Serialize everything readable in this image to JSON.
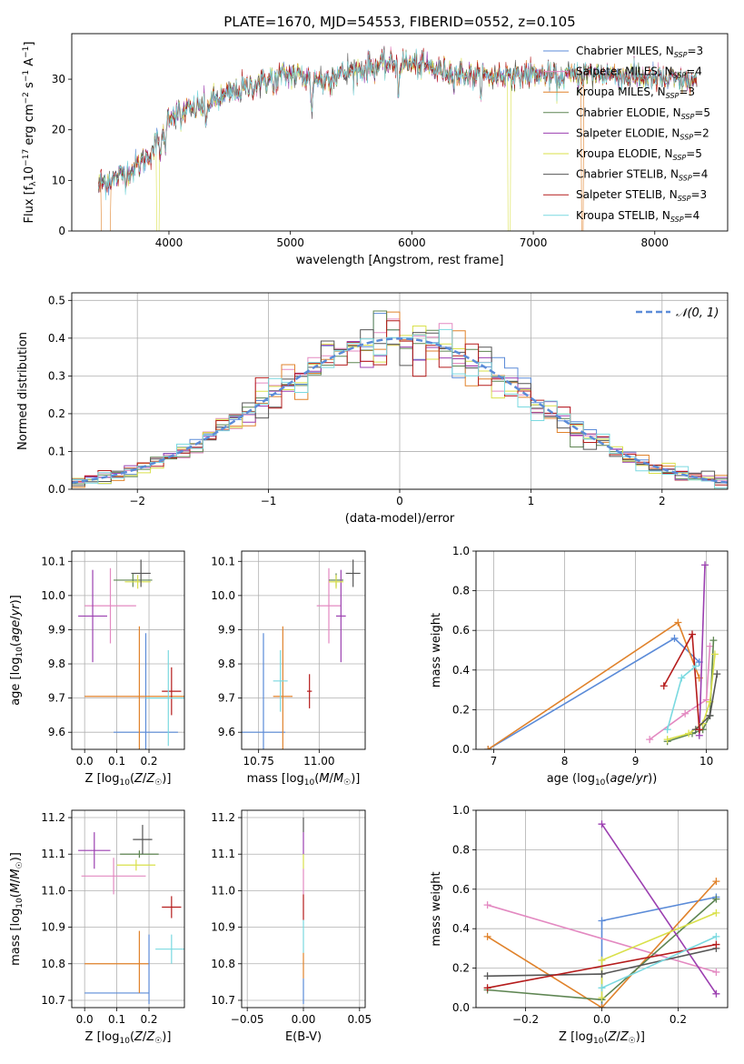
{
  "figure_title": "PLATE=1670, MJD=54553, FIBERID=0552, z=0.105",
  "colors": {
    "Chabrier MILES": "#5b8bd8",
    "Salpeter MILES": "#e389c1",
    "Kroupa MILES": "#e0822b",
    "Chabrier ELODIE": "#5e8552",
    "Salpeter ELODIE": "#9b3fb0",
    "Kroupa ELODIE": "#d9e04a",
    "Chabrier STELIB": "#555555",
    "Salpeter STELIB": "#b51c1c",
    "Kroupa STELIB": "#7ad9e0"
  },
  "chart_data": [
    {
      "id": "spectrum",
      "type": "line",
      "xlabel": "wavelength [Angstrom, rest frame]",
      "ylabel": "Flux [f_λ10^-17 erg cm^-2 s^-1 A^-1]",
      "xlim": [
        3200,
        8600
      ],
      "ylim": [
        0,
        39
      ],
      "xticks": [
        4000,
        5000,
        6000,
        7000,
        8000
      ],
      "yticks": [
        0,
        10,
        20,
        30
      ],
      "grid": false,
      "legend_position": "top-right",
      "series": [
        {
          "name": "Chabrier MILES, N_SSP=3",
          "color_key": "Chabrier MILES",
          "label": "Chabrier MILES, N",
          "sub": "SSP",
          "tail": "=3"
        },
        {
          "name": "Salpeter MILES, N_SSP=4",
          "color_key": "Salpeter MILES",
          "label": "Salpeter MILES, N",
          "sub": "SSP",
          "tail": "=4"
        },
        {
          "name": "Kroupa MILES, N_SSP=3",
          "color_key": "Kroupa MILES",
          "label": "Kroupa MILES, N",
          "sub": "SSP",
          "tail": "=3"
        },
        {
          "name": "Chabrier ELODIE, N_SSP=5",
          "color_key": "Chabrier ELODIE",
          "label": "Chabrier ELODIE, N",
          "sub": "SSP",
          "tail": "=5"
        },
        {
          "name": "Salpeter ELODIE, N_SSP=2",
          "color_key": "Salpeter ELODIE",
          "label": "Salpeter ELODIE, N",
          "sub": "SSP",
          "tail": "=2"
        },
        {
          "name": "Kroupa ELODIE, N_SSP=5",
          "color_key": "Kroupa ELODIE",
          "label": "Kroupa ELODIE, N",
          "sub": "SSP",
          "tail": "=5"
        },
        {
          "name": "Chabrier STELIB, N_SSP=4",
          "color_key": "Chabrier STELIB",
          "label": "Chabrier STELIB, N",
          "sub": "SSP",
          "tail": "=4"
        },
        {
          "name": "Salpeter STELIB, N_SSP=3",
          "color_key": "Salpeter STELIB",
          "label": "Salpeter STELIB, N",
          "sub": "SSP",
          "tail": "=3"
        },
        {
          "name": "Kroupa STELIB, N_SSP=4",
          "color_key": "Kroupa STELIB",
          "label": "Kroupa STELIB, N",
          "sub": "SSP",
          "tail": "=4"
        }
      ],
      "continuum_anchors": [
        [
          3420,
          9
        ],
        [
          3600,
          11
        ],
        [
          3700,
          12
        ],
        [
          3800,
          14
        ],
        [
          3950,
          19
        ],
        [
          4000,
          23
        ],
        [
          4200,
          24
        ],
        [
          4400,
          26
        ],
        [
          4600,
          28
        ],
        [
          4800,
          30
        ],
        [
          5000,
          31
        ],
        [
          5200,
          30
        ],
        [
          5400,
          31
        ],
        [
          5600,
          32
        ],
        [
          5800,
          33
        ],
        [
          6000,
          33
        ],
        [
          6200,
          32
        ],
        [
          6400,
          31
        ],
        [
          6600,
          30.5
        ],
        [
          6800,
          31
        ],
        [
          7000,
          31
        ],
        [
          7200,
          30.5
        ],
        [
          7400,
          31
        ],
        [
          7600,
          31
        ],
        [
          8000,
          30
        ],
        [
          8350,
          29.5
        ]
      ],
      "absorption_features": [
        [
          3934,
          4
        ],
        [
          3968,
          4
        ],
        [
          4101,
          3
        ],
        [
          4304,
          5
        ],
        [
          4861,
          3
        ],
        [
          5175,
          8
        ],
        [
          5270,
          3
        ],
        [
          5890,
          6
        ],
        [
          6563,
          2
        ],
        [
          6870,
          2
        ],
        [
          7200,
          2
        ]
      ],
      "dropouts": [
        {
          "series": "Kroupa MILES",
          "x": [
            3440,
            3520
          ]
        },
        {
          "series": "Kroupa ELODIE",
          "x": [
            3900,
            3920
          ]
        },
        {
          "series": "Kroupa ELODIE",
          "x": [
            6790,
            6810
          ]
        },
        {
          "series": "Kroupa MILES",
          "x": [
            7395,
            7410
          ]
        }
      ]
    },
    {
      "id": "residual-histogram",
      "type": "bar",
      "xlabel": "(data-model)/error",
      "ylabel": "Normed distribution",
      "xlim": [
        -2.5,
        2.5
      ],
      "ylim": [
        0,
        0.52
      ],
      "xticks": [
        -2,
        -1,
        0,
        1,
        2
      ],
      "yticks": [
        0.0,
        0.1,
        0.2,
        0.3,
        0.4,
        0.5
      ],
      "grid": true,
      "bin_width": 0.1,
      "legend_label": "𝒩(0, 1)",
      "legend_position": "top-right",
      "gaussian": {
        "mean": 0,
        "sigma": 1
      }
    },
    {
      "id": "age-vs-Z",
      "type": "scatter",
      "xlabel": "Z [log10(Z/Z☉)]",
      "ylabel": "age [log10(age/yr)]",
      "xlim": [
        -0.04,
        0.31
      ],
      "ylim": [
        9.55,
        10.13
      ],
      "xticks": [
        0.0,
        0.1,
        0.2
      ],
      "yticks": [
        9.6,
        9.7,
        9.8,
        9.9,
        10.0,
        10.1
      ],
      "grid": true,
      "points": [
        {
          "series": "Chabrier MILES",
          "x": 0.19,
          "xerr": 0.1,
          "y": 9.6,
          "yerr": 0.29
        },
        {
          "series": "Salpeter MILES",
          "x": 0.08,
          "xerr": 0.08,
          "y": 9.97,
          "yerr": 0.11
        },
        {
          "series": "Kroupa MILES",
          "x": 0.17,
          "xerr": 0.17,
          "y": 9.705,
          "yerr": 0.205
        },
        {
          "series": "Chabrier ELODIE",
          "x": 0.15,
          "xerr": 0.06,
          "y": 10.045,
          "yerr": 0.02
        },
        {
          "series": "Salpeter ELODIE",
          "x": 0.025,
          "xerr": 0.045,
          "y": 9.94,
          "yerr": 0.135
        },
        {
          "series": "Kroupa ELODIE",
          "x": 0.165,
          "xerr": 0.04,
          "y": 10.04,
          "yerr": 0.02
        },
        {
          "series": "Chabrier STELIB",
          "x": 0.175,
          "xerr": 0.03,
          "y": 10.065,
          "yerr": 0.04
        },
        {
          "series": "Salpeter STELIB",
          "x": 0.27,
          "xerr": 0.03,
          "y": 9.72,
          "yerr": 0.07
        },
        {
          "series": "Kroupa STELIB",
          "x": 0.26,
          "xerr": 0.07,
          "y": 9.7,
          "yerr": 0.14
        }
      ]
    },
    {
      "id": "age-vs-mass",
      "type": "scatter",
      "xlabel": "mass [log10(M/M☉)]",
      "ylabel": "",
      "xlim": [
        10.68,
        11.19
      ],
      "ylim": [
        9.55,
        10.13
      ],
      "xticks": [
        10.75,
        11.0
      ],
      "xtick_labels": [
        "10.75",
        "11.00"
      ],
      "yticks": [
        9.6,
        9.7,
        9.8,
        9.9,
        10.0,
        10.1
      ],
      "grid": true,
      "points": [
        {
          "series": "Chabrier MILES",
          "x": 10.77,
          "xerr": 0.09,
          "y": 9.6,
          "yerr": 0.29
        },
        {
          "series": "Salpeter MILES",
          "x": 11.04,
          "xerr": 0.05,
          "y": 9.97,
          "yerr": 0.11
        },
        {
          "series": "Kroupa MILES",
          "x": 10.85,
          "xerr": 0.04,
          "y": 9.705,
          "yerr": 0.205
        },
        {
          "series": "Chabrier ELODIE",
          "x": 11.07,
          "xerr": 0.03,
          "y": 10.045,
          "yerr": 0.02
        },
        {
          "series": "Salpeter ELODIE",
          "x": 11.09,
          "xerr": 0.02,
          "y": 9.94,
          "yerr": 0.135
        },
        {
          "series": "Kroupa ELODIE",
          "x": 11.07,
          "xerr": 0.03,
          "y": 10.04,
          "yerr": 0.02
        },
        {
          "series": "Chabrier STELIB",
          "x": 11.14,
          "xerr": 0.03,
          "y": 10.065,
          "yerr": 0.04
        },
        {
          "series": "Salpeter STELIB",
          "x": 10.96,
          "xerr": 0.01,
          "y": 9.72,
          "yerr": 0.05
        },
        {
          "series": "Kroupa STELIB",
          "x": 10.84,
          "xerr": 0.03,
          "y": 9.75,
          "yerr": 0.09
        }
      ]
    },
    {
      "id": "mass-weight-vs-age",
      "type": "line",
      "xlabel": "age (log10(age/yr))",
      "ylabel": "mass weight",
      "xlim": [
        6.75,
        10.3
      ],
      "ylim": [
        0,
        1
      ],
      "xticks": [
        7,
        8,
        9,
        10
      ],
      "yticks": [
        0.0,
        0.2,
        0.4,
        0.6,
        0.8,
        1.0
      ],
      "grid": true,
      "series": [
        {
          "series": "Chabrier MILES",
          "x": [
            6.92,
            9.55,
            9.9
          ],
          "y": [
            0.0,
            0.56,
            0.44
          ]
        },
        {
          "series": "Kroupa MILES",
          "x": [
            6.92,
            9.6,
            9.9
          ],
          "y": [
            0.0,
            0.64,
            0.36
          ]
        },
        {
          "series": "Salpeter MILES",
          "x": [
            9.2,
            9.7,
            10.0,
            10.05
          ],
          "y": [
            0.05,
            0.18,
            0.25,
            0.52
          ]
        },
        {
          "series": "Chabrier ELODIE",
          "x": [
            9.45,
            9.8,
            9.95,
            10.05,
            10.1
          ],
          "y": [
            0.04,
            0.08,
            0.1,
            0.17,
            0.55
          ]
        },
        {
          "series": "Salpeter ELODIE",
          "x": [
            9.9,
            9.98
          ],
          "y": [
            0.07,
            0.93
          ]
        },
        {
          "series": "Kroupa ELODIE",
          "x": [
            9.45,
            9.75,
            9.95,
            10.05,
            10.12
          ],
          "y": [
            0.05,
            0.08,
            0.13,
            0.24,
            0.48
          ]
        },
        {
          "series": "Chabrier STELIB",
          "x": [
            9.85,
            10.05,
            10.15
          ],
          "y": [
            0.1,
            0.17,
            0.38
          ]
        },
        {
          "series": "Salpeter STELIB",
          "x": [
            9.4,
            9.8,
            9.9
          ],
          "y": [
            0.32,
            0.58,
            0.1
          ]
        },
        {
          "series": "Kroupa STELIB",
          "x": [
            9.45,
            9.65,
            9.85
          ],
          "y": [
            0.1,
            0.36,
            0.42
          ]
        }
      ]
    },
    {
      "id": "mass-vs-Z",
      "type": "scatter",
      "xlabel": "Z [log10(Z/Z☉)]",
      "ylabel": "mass [log10(M/M☉)]",
      "xlim": [
        -0.04,
        0.31
      ],
      "ylim": [
        10.68,
        11.22
      ],
      "xticks": [
        0.0,
        0.1,
        0.2
      ],
      "yticks": [
        10.7,
        10.8,
        10.9,
        11.0,
        11.1,
        11.2
      ],
      "grid": true,
      "points": [
        {
          "series": "Chabrier MILES",
          "x": 0.1,
          "xerr": 0.1,
          "y": 10.72,
          "yerr": 0.0
        },
        {
          "series": "Salpeter MILES",
          "x": 0.09,
          "xerr": 0.1,
          "y": 11.04,
          "yerr": 0.05
        },
        {
          "series": "Kroupa MILES",
          "x": 0.1,
          "xerr": 0.1,
          "y": 10.8,
          "yerr": 0.0
        },
        {
          "series": "Chabrier ELODIE",
          "x": 0.17,
          "xerr": 0.06,
          "y": 11.1,
          "yerr": 0.01
        },
        {
          "series": "Salpeter ELODIE",
          "x": 0.03,
          "xerr": 0.05,
          "y": 11.11,
          "yerr": 0.05
        },
        {
          "series": "Kroupa ELODIE",
          "x": 0.16,
          "xerr": 0.06,
          "y": 11.07,
          "yerr": 0.015
        },
        {
          "series": "Chabrier STELIB",
          "x": 0.18,
          "xerr": 0.03,
          "y": 11.14,
          "yerr": 0.04
        },
        {
          "series": "Salpeter STELIB",
          "x": 0.27,
          "xerr": 0.03,
          "y": 10.955,
          "yerr": 0.03
        },
        {
          "series": "Kroupa STELIB",
          "x": 0.27,
          "xerr": 0.05,
          "y": 10.84,
          "yerr": 0.04
        }
      ],
      "vertical_segments": [
        {
          "series": "Kroupa MILES",
          "x": 0.17,
          "y": [
            10.72,
            10.89
          ]
        },
        {
          "series": "Chabrier MILES",
          "x": 0.2,
          "y": [
            10.69,
            10.88
          ]
        }
      ]
    },
    {
      "id": "mass-vs-EBV",
      "type": "scatter",
      "xlabel": "E(B-V)",
      "ylabel": "",
      "xlim": [
        -0.055,
        0.055
      ],
      "ylim": [
        10.68,
        11.22
      ],
      "xticks": [
        -0.05,
        0.0,
        0.05
      ],
      "xtick_labels": [
        "−0.05",
        "0.00",
        "0.05"
      ],
      "yticks": [
        10.7,
        10.8,
        10.9,
        11.0,
        11.1,
        11.2
      ],
      "grid": true,
      "segments": [
        {
          "series": "Chabrier MILES",
          "y": [
            10.69,
            10.76
          ]
        },
        {
          "series": "Kroupa MILES",
          "y": [
            10.76,
            10.83
          ]
        },
        {
          "series": "Kroupa STELIB",
          "y": [
            10.83,
            10.92
          ]
        },
        {
          "series": "Salpeter STELIB",
          "y": [
            10.92,
            10.99
          ]
        },
        {
          "series": "Salpeter MILES",
          "y": [
            10.99,
            11.06
          ]
        },
        {
          "series": "Kroupa ELODIE",
          "y": [
            11.06,
            11.1
          ]
        },
        {
          "series": "Salpeter ELODIE",
          "y": [
            11.1,
            11.16
          ]
        },
        {
          "series": "Chabrier STELIB",
          "y": [
            11.16,
            11.2
          ]
        }
      ]
    },
    {
      "id": "mass-weight-vs-Z",
      "type": "line",
      "xlabel": "Z [log10(Z/Z☉)]",
      "ylabel": "mass weight",
      "xlim": [
        -0.33,
        0.33
      ],
      "ylim": [
        0,
        1
      ],
      "xticks": [
        -0.2,
        0.0,
        0.2
      ],
      "xtick_labels": [
        "−0.2",
        "0.0",
        "0.2"
      ],
      "yticks": [
        0.0,
        0.2,
        0.4,
        0.6,
        0.8,
        1.0
      ],
      "grid": true,
      "series": [
        {
          "series": "Chabrier MILES",
          "x": [
            0.0,
            0.0,
            0.3
          ],
          "y": [
            0.0,
            0.44,
            0.56
          ]
        },
        {
          "series": "Salpeter MILES",
          "x": [
            -0.3,
            0.3
          ],
          "y": [
            0.52,
            0.18
          ]
        },
        {
          "series": "Kroupa MILES",
          "x": [
            -0.3,
            0.0,
            0.3
          ],
          "y": [
            0.36,
            0.0,
            0.64
          ]
        },
        {
          "series": "Chabrier ELODIE",
          "x": [
            -0.3,
            0.0,
            0.3
          ],
          "y": [
            0.09,
            0.04,
            0.55
          ]
        },
        {
          "series": "Salpeter ELODIE",
          "x": [
            0.0,
            0.3
          ],
          "y": [
            0.93,
            0.07
          ]
        },
        {
          "series": "Kroupa ELODIE",
          "x": [
            0.0,
            0.0,
            0.3
          ],
          "y": [
            0.05,
            0.24,
            0.48
          ]
        },
        {
          "series": "Chabrier STELIB",
          "x": [
            -0.3,
            0.0,
            0.3
          ],
          "y": [
            0.16,
            0.17,
            0.3
          ]
        },
        {
          "series": "Salpeter STELIB",
          "x": [
            -0.3,
            0.3
          ],
          "y": [
            0.1,
            0.32
          ]
        },
        {
          "series": "Kroupa STELIB",
          "x": [
            0.0,
            0.3
          ],
          "y": [
            0.1,
            0.36
          ]
        }
      ]
    }
  ]
}
